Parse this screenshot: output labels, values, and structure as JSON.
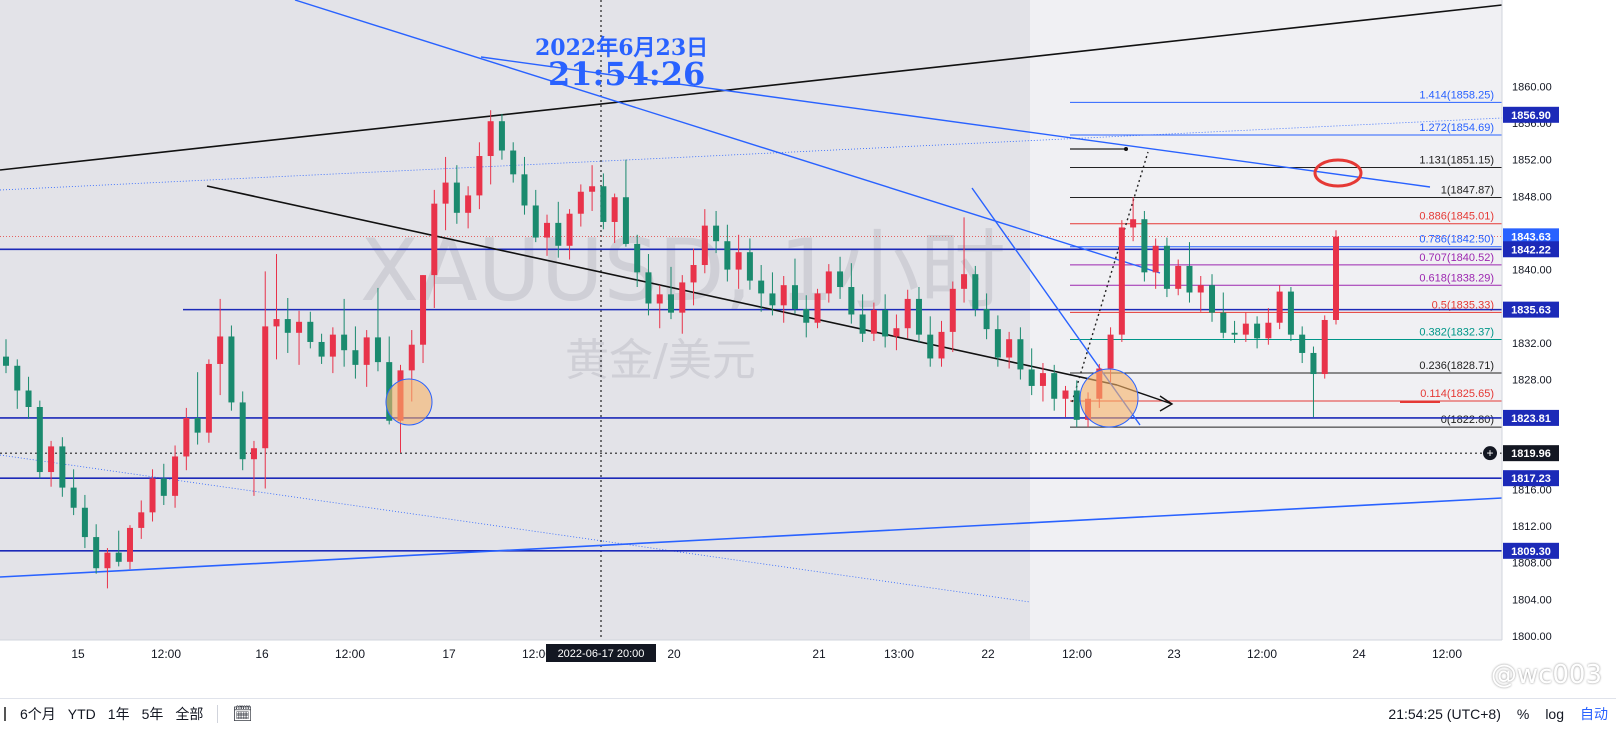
{
  "overlay": {
    "date_stamp": "2022年6月23日",
    "time_stamp": "21:54:26"
  },
  "watermark": {
    "symbol": "XAUUSD, 1小时",
    "name": "黄金/美元"
  },
  "corner_tag": "@wc003",
  "colors": {
    "up": "#e8334a",
    "down": "#1a8a6e",
    "trend_blue": "#2962ff",
    "level_navy": "#1c2ab8",
    "trend_black": "#111111",
    "fib_red": "#e53935",
    "fib_purple": "#9c27b0",
    "fib_teal": "#009688",
    "fib_blue": "#2962ff",
    "fib_black": "#222222"
  },
  "chart_data": {
    "type": "candlestick",
    "symbol": "XAUUSD",
    "interval": "1小时",
    "ylim": [
      1800,
      1862
    ],
    "y_ticks": [
      "1800.00",
      "1804.00",
      "1808.00",
      "1812.00",
      "1816.00",
      "1820.00",
      "1824.00",
      "1828.00",
      "1832.00",
      "1836.00",
      "1840.00",
      "1844.00",
      "1848.00",
      "1852.00",
      "1856.00",
      "1860.00"
    ],
    "x_ticks": [
      "15",
      "12:00",
      "16",
      "12:00",
      "17",
      "12:00",
      "20",
      "21",
      "13:00",
      "22",
      "12:00",
      "23",
      "12:00",
      "24",
      "12:00"
    ],
    "crosshair_time_label": "2022-06-17  20:00",
    "price_tags": [
      {
        "text": "1856.90",
        "price": 1856.9
      },
      {
        "text": "1843.63",
        "price": 1843.63
      },
      {
        "text": "1842.22",
        "price": 1842.22
      },
      {
        "text": "1835.63",
        "price": 1835.63
      },
      {
        "text": "1823.81",
        "price": 1823.81
      },
      {
        "text": "1819.96",
        "price": 1819.96
      },
      {
        "text": "1817.23",
        "price": 1817.23
      },
      {
        "text": "1809.30",
        "price": 1809.3
      }
    ],
    "horizontal_levels": [
      1842.22,
      1835.63,
      1823.81,
      1817.23,
      1809.3
    ],
    "fibonacci": [
      {
        "label": "1.414(1858.25)",
        "price": 1858.25,
        "color": "fib_blue"
      },
      {
        "label": "1.272(1854.69)",
        "price": 1854.69,
        "color": "fib_blue"
      },
      {
        "label": "1.131(1851.15)",
        "price": 1851.15,
        "color": "fib_black"
      },
      {
        "label": "1(1847.87)",
        "price": 1847.87,
        "color": "fib_black"
      },
      {
        "label": "0.886(1845.01)",
        "price": 1845.01,
        "color": "fib_red"
      },
      {
        "label": "0.786(1842.50)",
        "price": 1842.5,
        "color": "fib_blue"
      },
      {
        "label": "0.707(1840.52)",
        "price": 1840.52,
        "color": "fib_purple"
      },
      {
        "label": "0.618(1838.29)",
        "price": 1838.29,
        "color": "fib_purple"
      },
      {
        "label": "0.5(1835.33)",
        "price": 1835.33,
        "color": "fib_red"
      },
      {
        "label": "0.382(1832.37)",
        "price": 1832.37,
        "color": "fib_teal"
      },
      {
        "label": "0.236(1828.71)",
        "price": 1828.71,
        "color": "fib_black"
      },
      {
        "label": "0.114(1825.65)",
        "price": 1825.65,
        "color": "fib_red"
      },
      {
        "label": "0(1822.80)",
        "price": 1822.8,
        "color": "fib_black"
      }
    ],
    "candles": [
      [
        1830.5,
        1832.4,
        1828.7,
        1829.5
      ],
      [
        1829.5,
        1830.2,
        1824.8,
        1826.8
      ],
      [
        1826.8,
        1828.3,
        1823.7,
        1825.0
      ],
      [
        1825.0,
        1825.7,
        1817.2,
        1817.9
      ],
      [
        1817.9,
        1821.3,
        1816.3,
        1820.7
      ],
      [
        1820.7,
        1821.7,
        1815.2,
        1816.2
      ],
      [
        1816.2,
        1818.2,
        1813.2,
        1814.0
      ],
      [
        1814.0,
        1815.4,
        1809.6,
        1810.8
      ],
      [
        1810.8,
        1812.2,
        1806.8,
        1807.4
      ],
      [
        1807.4,
        1809.6,
        1805.2,
        1809.1
      ],
      [
        1809.1,
        1811.5,
        1807.6,
        1808.1
      ],
      [
        1808.1,
        1812.1,
        1807.3,
        1811.8
      ],
      [
        1811.8,
        1814.8,
        1810.6,
        1813.5
      ],
      [
        1813.5,
        1818.2,
        1812.5,
        1817.2
      ],
      [
        1817.2,
        1818.8,
        1814.3,
        1815.3
      ],
      [
        1815.3,
        1820.8,
        1814.0,
        1819.6
      ],
      [
        1819.6,
        1824.9,
        1818.1,
        1823.8
      ],
      [
        1823.8,
        1828.8,
        1820.9,
        1822.2
      ],
      [
        1822.2,
        1830.2,
        1821.1,
        1829.7
      ],
      [
        1829.7,
        1836.8,
        1826.3,
        1832.7
      ],
      [
        1832.7,
        1833.9,
        1824.6,
        1825.5
      ],
      [
        1825.5,
        1826.7,
        1818.1,
        1819.3
      ],
      [
        1819.3,
        1821.3,
        1815.3,
        1820.5
      ],
      [
        1820.5,
        1839.8,
        1816.1,
        1833.8
      ],
      [
        1833.8,
        1841.7,
        1830.2,
        1834.6
      ],
      [
        1834.6,
        1836.9,
        1830.9,
        1833.1
      ],
      [
        1833.1,
        1835.5,
        1829.6,
        1834.3
      ],
      [
        1834.3,
        1835.4,
        1831.4,
        1832.1
      ],
      [
        1832.1,
        1833.0,
        1829.7,
        1830.5
      ],
      [
        1830.5,
        1833.7,
        1828.7,
        1832.9
      ],
      [
        1832.9,
        1836.8,
        1829.4,
        1831.2
      ],
      [
        1831.2,
        1833.8,
        1828.1,
        1829.6
      ],
      [
        1829.6,
        1833.4,
        1827.2,
        1832.6
      ],
      [
        1832.6,
        1838.0,
        1828.9,
        1829.9
      ],
      [
        1829.9,
        1832.7,
        1823.1,
        1823.5
      ],
      [
        1823.5,
        1829.6,
        1820.0,
        1829.0
      ],
      [
        1829.0,
        1833.4,
        1825.6,
        1831.8
      ],
      [
        1831.8,
        1839.4,
        1829.8,
        1839.4
      ],
      [
        1839.4,
        1848.7,
        1835.8,
        1847.2
      ],
      [
        1847.2,
        1852.3,
        1844.3,
        1849.5
      ],
      [
        1849.5,
        1851.4,
        1845.0,
        1846.2
      ],
      [
        1846.2,
        1849.1,
        1844.5,
        1848.1
      ],
      [
        1848.1,
        1853.9,
        1846.6,
        1852.4
      ],
      [
        1852.4,
        1857.4,
        1849.3,
        1856.2
      ],
      [
        1856.2,
        1857.0,
        1852.0,
        1853.0
      ],
      [
        1853.0,
        1853.9,
        1849.5,
        1850.4
      ],
      [
        1850.4,
        1852.3,
        1846.0,
        1847.0
      ],
      [
        1847.0,
        1848.7,
        1843.0,
        1843.5
      ],
      [
        1843.5,
        1846.0,
        1841.5,
        1845.1
      ],
      [
        1845.1,
        1847.4,
        1841.3,
        1842.6
      ],
      [
        1842.6,
        1846.6,
        1841.1,
        1846.1
      ],
      [
        1846.1,
        1849.3,
        1844.7,
        1848.5
      ],
      [
        1848.5,
        1851.4,
        1846.4,
        1849.1
      ],
      [
        1849.1,
        1850.5,
        1844.4,
        1845.2
      ],
      [
        1845.2,
        1848.3,
        1842.9,
        1847.9
      ],
      [
        1847.9,
        1852.0,
        1842.5,
        1842.8
      ],
      [
        1842.8,
        1843.8,
        1838.1,
        1839.7
      ],
      [
        1839.7,
        1841.7,
        1835.0,
        1836.3
      ],
      [
        1836.3,
        1838.3,
        1833.6,
        1837.3
      ],
      [
        1837.3,
        1840.3,
        1834.6,
        1835.3
      ],
      [
        1835.3,
        1839.4,
        1833.0,
        1838.6
      ],
      [
        1838.6,
        1842.3,
        1836.1,
        1840.5
      ],
      [
        1840.5,
        1846.6,
        1839.6,
        1844.8
      ],
      [
        1844.8,
        1846.4,
        1841.8,
        1843.1
      ],
      [
        1843.1,
        1844.9,
        1838.7,
        1840.0
      ],
      [
        1840.0,
        1843.8,
        1837.9,
        1841.9
      ],
      [
        1841.9,
        1843.4,
        1837.8,
        1838.8
      ],
      [
        1838.8,
        1840.5,
        1835.4,
        1837.4
      ],
      [
        1837.4,
        1839.7,
        1835.0,
        1836.1
      ],
      [
        1836.1,
        1839.3,
        1834.2,
        1838.3
      ],
      [
        1838.3,
        1841.2,
        1835.2,
        1835.7
      ],
      [
        1835.7,
        1837.2,
        1832.6,
        1834.2
      ],
      [
        1834.2,
        1837.9,
        1833.6,
        1837.4
      ],
      [
        1837.4,
        1840.6,
        1836.4,
        1839.8
      ],
      [
        1839.8,
        1841.4,
        1836.8,
        1838.1
      ],
      [
        1838.1,
        1840.7,
        1834.1,
        1835.1
      ],
      [
        1835.1,
        1837.3,
        1832.1,
        1833.0
      ],
      [
        1833.0,
        1836.4,
        1832.2,
        1835.6
      ],
      [
        1835.6,
        1837.3,
        1831.5,
        1832.7
      ],
      [
        1832.7,
        1835.1,
        1831.2,
        1833.6
      ],
      [
        1833.6,
        1837.8,
        1832.5,
        1836.8
      ],
      [
        1836.8,
        1838.1,
        1832.0,
        1832.9
      ],
      [
        1832.9,
        1834.9,
        1829.4,
        1830.3
      ],
      [
        1830.3,
        1834.4,
        1829.4,
        1833.2
      ],
      [
        1833.2,
        1838.7,
        1831.0,
        1837.9
      ],
      [
        1837.9,
        1845.7,
        1836.4,
        1839.5
      ],
      [
        1839.5,
        1840.4,
        1834.9,
        1835.7
      ],
      [
        1835.7,
        1837.4,
        1832.4,
        1833.5
      ],
      [
        1833.5,
        1835.0,
        1829.4,
        1830.4
      ],
      [
        1830.4,
        1833.2,
        1829.2,
        1832.4
      ],
      [
        1832.4,
        1833.7,
        1828.0,
        1829.1
      ],
      [
        1829.1,
        1831.4,
        1826.3,
        1827.3
      ],
      [
        1827.3,
        1829.8,
        1825.6,
        1828.7
      ],
      [
        1828.7,
        1829.6,
        1824.6,
        1825.9
      ],
      [
        1825.9,
        1827.3,
        1823.9,
        1826.8
      ],
      [
        1826.8,
        1827.9,
        1822.8,
        1823.6
      ],
      [
        1823.6,
        1826.6,
        1822.8,
        1825.9
      ],
      [
        1825.9,
        1829.7,
        1824.9,
        1829.2
      ],
      [
        1829.2,
        1833.7,
        1827.7,
        1832.9
      ],
      [
        1832.9,
        1845.4,
        1832.1,
        1844.6
      ],
      [
        1844.6,
        1847.9,
        1843.1,
        1845.5
      ],
      [
        1845.5,
        1846.4,
        1838.7,
        1839.7
      ],
      [
        1839.7,
        1843.4,
        1837.9,
        1842.6
      ],
      [
        1842.6,
        1843.5,
        1837.0,
        1837.9
      ],
      [
        1837.9,
        1841.1,
        1837.2,
        1840.4
      ],
      [
        1840.4,
        1843.0,
        1836.4,
        1837.5
      ],
      [
        1837.5,
        1839.3,
        1835.4,
        1838.3
      ],
      [
        1838.3,
        1839.5,
        1834.3,
        1835.3
      ],
      [
        1835.3,
        1837.5,
        1832.5,
        1833.1
      ],
      [
        1833.1,
        1834.4,
        1832.0,
        1832.9
      ],
      [
        1832.9,
        1835.3,
        1832.1,
        1834.1
      ],
      [
        1834.1,
        1834.9,
        1831.4,
        1832.5
      ],
      [
        1832.5,
        1835.8,
        1831.8,
        1834.2
      ],
      [
        1834.2,
        1838.3,
        1833.5,
        1837.6
      ],
      [
        1837.6,
        1838.1,
        1832.2,
        1832.9
      ],
      [
        1832.9,
        1833.8,
        1829.8,
        1830.9
      ],
      [
        1830.9,
        1831.6,
        1823.9,
        1828.6
      ],
      [
        1828.6,
        1835.0,
        1828.1,
        1834.5
      ],
      [
        1834.5,
        1844.3,
        1834.0,
        1843.6
      ]
    ]
  },
  "toolbar": {
    "ranges": [
      "6个月",
      "YTD",
      "1年",
      "5年",
      "全部"
    ],
    "clock": "21:54:25 (UTC+8)",
    "log_label": "log",
    "auto_label": "自动",
    "pct_label": "%"
  }
}
